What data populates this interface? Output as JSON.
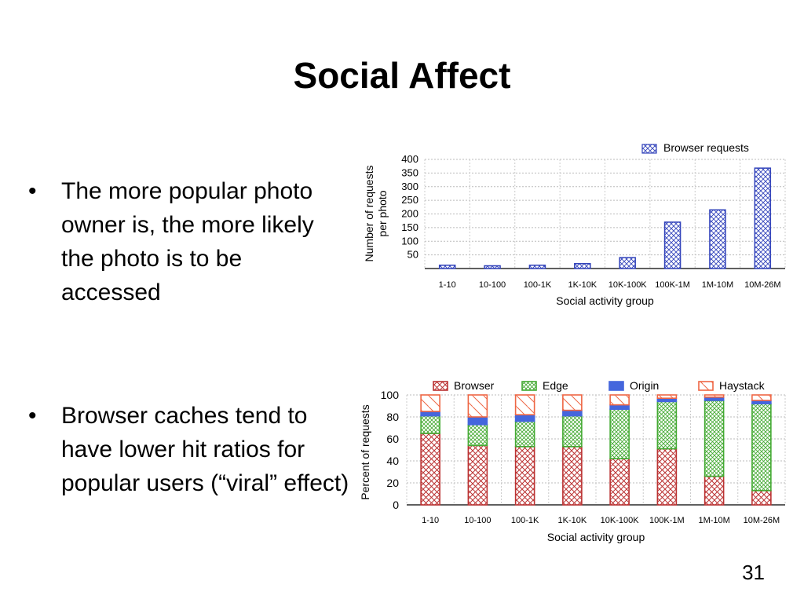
{
  "slide": {
    "title": "Social Affect",
    "page_number": "31",
    "bullets": [
      {
        "text": "The more popular photo owner is, the more likely the photo is to be accessed"
      },
      {
        "text": "Browser caches tend to have lower hit ratios for popular users (“viral” effect)"
      }
    ]
  },
  "chart_data": [
    {
      "type": "bar",
      "categories": [
        "1-10",
        "10-100",
        "100-1K",
        "1K-10K",
        "10K-100K",
        "100K-1M",
        "1M-10M",
        "10M-26M"
      ],
      "series": [
        {
          "name": "Browser requests",
          "values": [
            12,
            10,
            12,
            18,
            40,
            170,
            215,
            368
          ]
        }
      ],
      "xlabel": "Social activity group",
      "ylabel": "Number of requests per photo",
      "yticks": [
        50,
        100,
        150,
        200,
        250,
        300,
        350,
        400
      ],
      "ylim": [
        0,
        400
      ],
      "grid": true,
      "legend_placement": "top-right",
      "colors": {
        "Browser requests": "#3344bb"
      }
    },
    {
      "type": "bar",
      "stacked": true,
      "categories": [
        "1-10",
        "10-100",
        "100-1K",
        "1K-10K",
        "10K-100K",
        "100K-1M",
        "1M-10M",
        "10M-26M"
      ],
      "series": [
        {
          "name": "Browser",
          "values": [
            65,
            54,
            53,
            53,
            42,
            51,
            26,
            13
          ]
        },
        {
          "name": "Edge",
          "values": [
            16,
            19,
            23,
            28,
            45,
            43,
            69,
            79
          ]
        },
        {
          "name": "Origin",
          "values": [
            4,
            7,
            6,
            5,
            4,
            3,
            3,
            3
          ]
        },
        {
          "name": "Haystack",
          "values": [
            15,
            20,
            18,
            14,
            9,
            3,
            2,
            5
          ]
        }
      ],
      "xlabel": "Social activity group",
      "ylabel": "Percent of requests",
      "yticks": [
        0,
        20,
        40,
        60,
        80,
        100
      ],
      "ylim": [
        0,
        100
      ],
      "grid": true,
      "legend_placement": "top",
      "colors": {
        "Browser": "#bb3333",
        "Edge": "#44aa33",
        "Origin": "#4466dd",
        "Haystack": "#ee6644"
      }
    }
  ]
}
